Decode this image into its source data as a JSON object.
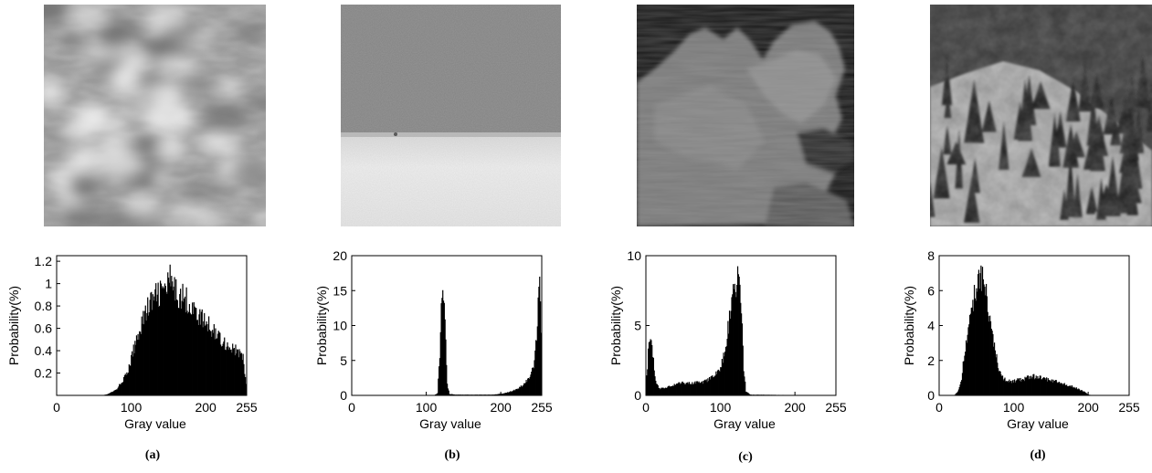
{
  "chart_data": [
    {
      "type": "bar",
      "panel_label": "(a)",
      "xlabel": "Gray value",
      "ylabel": "Probability(%)",
      "xlim": [
        0,
        255
      ],
      "ylim": [
        0,
        1.25
      ],
      "xticks": [
        0,
        100,
        200,
        255
      ],
      "yticks": [
        0.2,
        0.4,
        0.6,
        0.8,
        1,
        1.2
      ],
      "anchors": [
        [
          0,
          0
        ],
        [
          60,
          0
        ],
        [
          68,
          0.01
        ],
        [
          80,
          0.05
        ],
        [
          95,
          0.2
        ],
        [
          105,
          0.45
        ],
        [
          115,
          0.68
        ],
        [
          125,
          0.82
        ],
        [
          135,
          0.9
        ],
        [
          145,
          0.95
        ],
        [
          152,
          1.0
        ],
        [
          158,
          0.93
        ],
        [
          165,
          0.9
        ],
        [
          175,
          0.85
        ],
        [
          185,
          0.75
        ],
        [
          195,
          0.68
        ],
        [
          205,
          0.62
        ],
        [
          215,
          0.55
        ],
        [
          225,
          0.47
        ],
        [
          235,
          0.42
        ],
        [
          245,
          0.38
        ],
        [
          250,
          0.33
        ],
        [
          254,
          0.1
        ],
        [
          255,
          0
        ]
      ],
      "peak": {
        "x": 152,
        "value": 1.17
      }
    },
    {
      "type": "bar",
      "panel_label": "(b)",
      "xlabel": "Gray value",
      "ylabel": "Probability(%)",
      "xlim": [
        0,
        255
      ],
      "ylim": [
        0,
        20
      ],
      "xticks": [
        0,
        100,
        200,
        255
      ],
      "yticks": [
        0,
        5,
        10,
        15,
        20
      ],
      "anchors": [
        [
          0,
          0
        ],
        [
          110,
          0
        ],
        [
          115,
          0.3
        ],
        [
          118,
          6
        ],
        [
          120,
          14
        ],
        [
          122,
          16
        ],
        [
          124,
          15
        ],
        [
          126,
          8
        ],
        [
          128,
          1.5
        ],
        [
          131,
          0.2
        ],
        [
          140,
          0.1
        ],
        [
          190,
          0.1
        ],
        [
          205,
          0.3
        ],
        [
          220,
          0.8
        ],
        [
          230,
          1.5
        ],
        [
          238,
          2.5
        ],
        [
          244,
          4
        ],
        [
          248,
          8
        ],
        [
          250,
          13
        ],
        [
          252,
          17
        ],
        [
          254,
          9
        ],
        [
          255,
          0
        ]
      ],
      "peak": {
        "x": 252,
        "value": 17
      }
    },
    {
      "type": "bar",
      "panel_label": "(c)",
      "xlabel": "Gray value",
      "ylabel": "Probability(%)",
      "xlim": [
        0,
        255
      ],
      "ylim": [
        0,
        10
      ],
      "xticks": [
        0,
        100,
        200,
        255
      ],
      "yticks": [
        0,
        5,
        10
      ],
      "anchors": [
        [
          0,
          0.5
        ],
        [
          3,
          3
        ],
        [
          6,
          4.2
        ],
        [
          9,
          3
        ],
        [
          13,
          1
        ],
        [
          18,
          0.5
        ],
        [
          30,
          0.6
        ],
        [
          40,
          0.8
        ],
        [
          50,
          0.9
        ],
        [
          60,
          0.9
        ],
        [
          70,
          0.9
        ],
        [
          80,
          1.0
        ],
        [
          90,
          1.3
        ],
        [
          100,
          2.0
        ],
        [
          107,
          3.5
        ],
        [
          112,
          5.5
        ],
        [
          117,
          7.5
        ],
        [
          121,
          8
        ],
        [
          125,
          8.5
        ],
        [
          128,
          6
        ],
        [
          131,
          2
        ],
        [
          134,
          0.3
        ],
        [
          140,
          0.05
        ],
        [
          255,
          0
        ]
      ],
      "peak": {
        "x": 125,
        "value": 8.5
      }
    },
    {
      "type": "bar",
      "panel_label": "(d)",
      "xlabel": "Gray value",
      "ylabel": "Probability(%)",
      "xlim": [
        0,
        255
      ],
      "ylim": [
        0,
        8
      ],
      "xticks": [
        0,
        100,
        200,
        255
      ],
      "yticks": [
        0,
        2,
        4,
        6,
        8
      ],
      "anchors": [
        [
          0,
          0
        ],
        [
          20,
          0
        ],
        [
          25,
          0.2
        ],
        [
          30,
          1
        ],
        [
          35,
          2.8
        ],
        [
          40,
          4.5
        ],
        [
          45,
          5.3
        ],
        [
          50,
          6
        ],
        [
          55,
          6.8
        ],
        [
          60,
          6.3
        ],
        [
          65,
          5.5
        ],
        [
          70,
          4
        ],
        [
          75,
          2.5
        ],
        [
          80,
          1.5
        ],
        [
          85,
          1.0
        ],
        [
          95,
          0.8
        ],
        [
          110,
          0.9
        ],
        [
          125,
          1.1
        ],
        [
          140,
          0.95
        ],
        [
          160,
          0.75
        ],
        [
          175,
          0.55
        ],
        [
          185,
          0.4
        ],
        [
          195,
          0.2
        ],
        [
          200,
          0.05
        ],
        [
          205,
          0
        ],
        [
          255,
          0
        ]
      ],
      "peak": {
        "x": 55,
        "value": 7
      }
    }
  ],
  "photos": [
    {
      "id": "a",
      "icon": "bokeh-texture-image"
    },
    {
      "id": "b",
      "icon": "sea-horizon-image"
    },
    {
      "id": "c",
      "icon": "cloud-image"
    },
    {
      "id": "d",
      "icon": "forest-hillside-image"
    }
  ]
}
